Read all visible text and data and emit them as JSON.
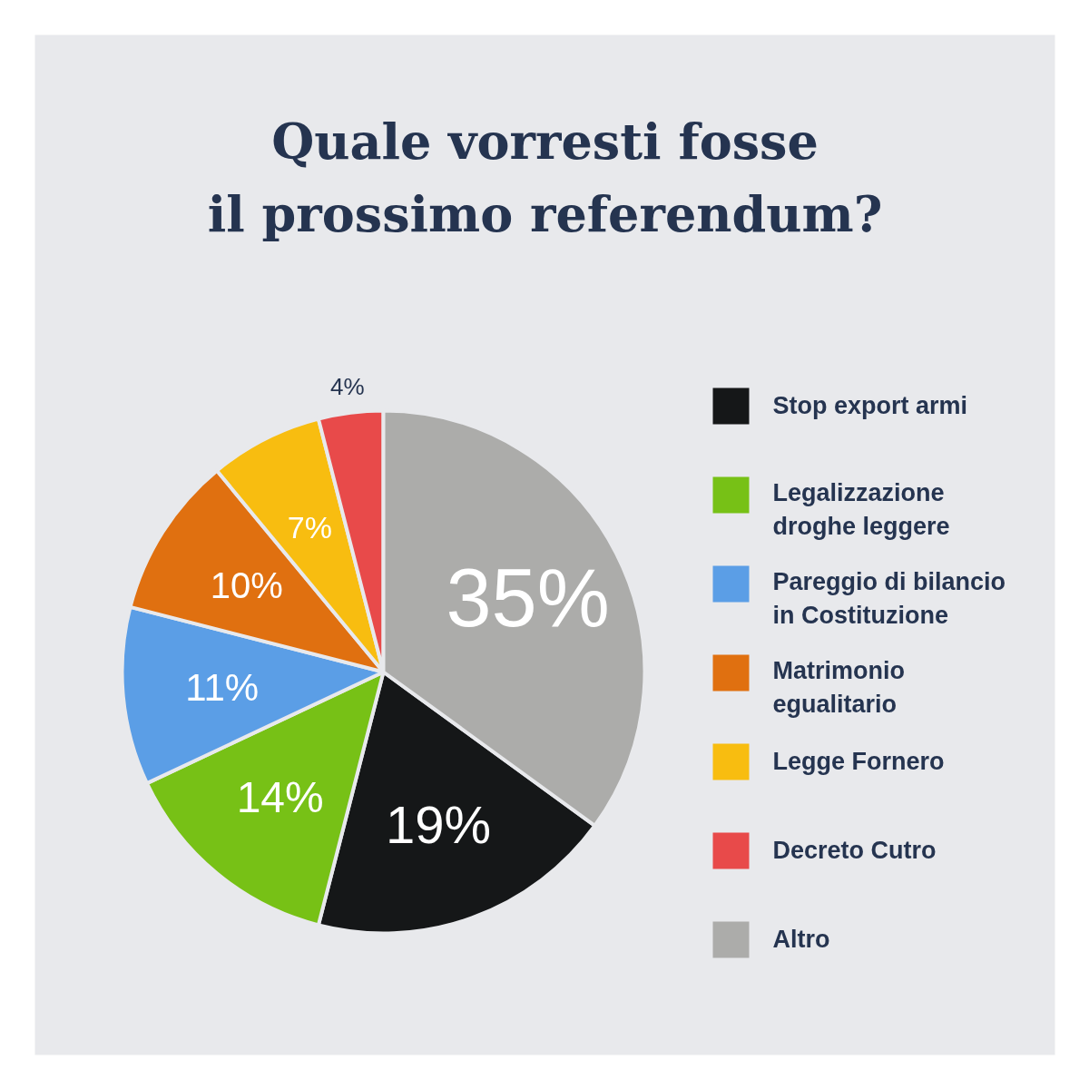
{
  "chart_data": {
    "type": "pie",
    "title": "Quale vorresti fosse il prossimo referendum?",
    "categories": [
      "Stop export armi",
      "Legalizzazione droghe leggere",
      "Pareggio di bilancio in Costituzione",
      "Matrimonio egualitario",
      "Legge Fornero",
      "Decreto Cutro",
      "Altro"
    ],
    "values": [
      19,
      14,
      11,
      10,
      7,
      4,
      35
    ],
    "colors": [
      "#151718",
      "#77c116",
      "#5b9ee6",
      "#e07010",
      "#f8bd10",
      "#e84a4a",
      "#acacaa"
    ],
    "value_labels": [
      "19%",
      "14%",
      "11%",
      "10%",
      "7%",
      "4%",
      "35%"
    ],
    "legend": "right"
  }
}
